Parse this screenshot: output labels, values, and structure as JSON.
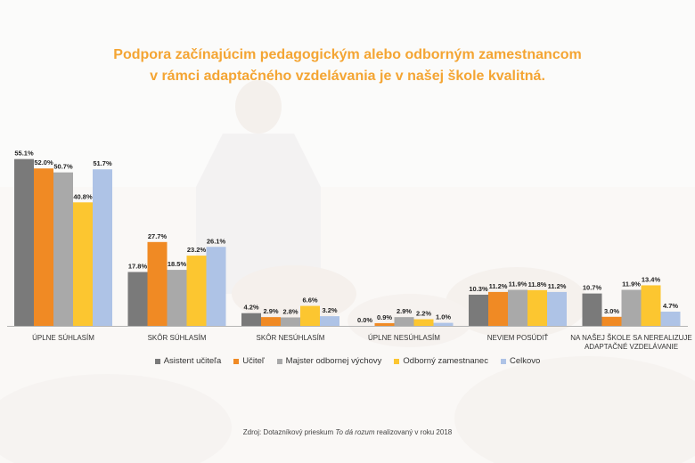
{
  "title": {
    "line1": "Podpora začínajúcim pedagogickým alebo odborným zamestnancom",
    "line2": "v rámci adaptačného vzdelávania je v našej škole kvalitná."
  },
  "source": {
    "prefix": "Zdroj: Dotazníkový prieskum ",
    "italic": "To dá rozum",
    "suffix": " realizovaný v roku 2018"
  },
  "chart_data": {
    "type": "bar",
    "title": "Podpora začínajúcim pedagogickým alebo odborným zamestnancom v rámci adaptačného vzdelávania je v našej škole kvalitná.",
    "categories": [
      [
        "ÚPLNE SÚHLASÍM"
      ],
      [
        "SKÔR SÚHLASÍM"
      ],
      [
        "SKÔR NESÚHLASÍM"
      ],
      [
        "ÚPLNE NESÚHLASÍM"
      ],
      [
        "NEVIEM POSÚDIŤ"
      ],
      [
        "NA NAŠEJ ŠKOLE SA NEREALIZUJE",
        "ADAPTAČNÉ VZDELÁVANIE"
      ]
    ],
    "series": [
      {
        "name": "Asistent učiteľa",
        "color": "#7a7a7a",
        "values": [
          55.1,
          17.8,
          4.2,
          0.0,
          10.3,
          10.7
        ]
      },
      {
        "name": "Učiteľ",
        "color": "#f08a24",
        "values": [
          52.0,
          27.7,
          2.9,
          0.9,
          11.2,
          3.0
        ]
      },
      {
        "name": "Majster odbornej výchovy",
        "color": "#a9a9a9",
        "values": [
          50.7,
          18.5,
          2.8,
          2.9,
          11.9,
          11.9
        ]
      },
      {
        "name": "Odborný zamestnanec",
        "color": "#fcc630",
        "values": [
          40.8,
          23.2,
          6.6,
          2.2,
          11.8,
          13.4
        ]
      },
      {
        "name": "Celkovo",
        "color": "#aec3e6",
        "values": [
          51.7,
          26.1,
          3.2,
          1.0,
          11.2,
          4.7
        ]
      }
    ],
    "value_suffix": "%",
    "legend_position": "bottom",
    "grid": false
  }
}
